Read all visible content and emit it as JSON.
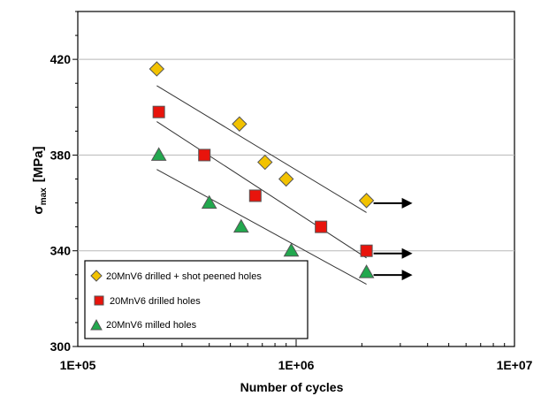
{
  "chart_data": {
    "type": "scatter",
    "xscale": "log",
    "xlim": [
      100000,
      10000000
    ],
    "ylim": [
      300,
      440
    ],
    "xticks": [
      100000,
      1000000,
      10000000
    ],
    "xtick_labels": [
      "1E+05",
      "1E+06",
      "1E+07"
    ],
    "yticks": [
      300,
      340,
      380,
      420
    ],
    "ytick_labels": [
      "300",
      "340",
      "380",
      "420"
    ],
    "grid": "horizontal",
    "xlabel": "Number of cycles",
    "ylabel_main": "σ",
    "ylabel_sub": "max",
    "ylabel_unit": "[MPa]",
    "legend_position": "bottom-left",
    "series": [
      {
        "name": "20MnV6 drilled + shot peened holes",
        "marker": "diamond",
        "color": "#F2C200",
        "x": [
          230000,
          550000,
          720000,
          900000,
          2100000
        ],
        "y": [
          416,
          393,
          377,
          370,
          361
        ],
        "runout_x": 2100000,
        "fit_x": [
          230000,
          2100000
        ],
        "fit_y": [
          409,
          356
        ]
      },
      {
        "name": "20MnV6 drilled holes",
        "marker": "square",
        "color": "#E8140C",
        "x": [
          235000,
          380000,
          650000,
          1300000,
          2100000
        ],
        "y": [
          398,
          380,
          363,
          350,
          340
        ],
        "runout_x": 2100000,
        "fit_x": [
          230000,
          2100000
        ],
        "fit_y": [
          394,
          337
        ]
      },
      {
        "name": "20MnV6 milled holes",
        "marker": "triangle",
        "color": "#22A84E",
        "x": [
          235000,
          400000,
          560000,
          950000,
          2100000
        ],
        "y": [
          380,
          360,
          350,
          340,
          331
        ],
        "runout_x": 2100000,
        "fit_x": [
          230000,
          2100000
        ],
        "fit_y": [
          374,
          326
        ]
      }
    ]
  }
}
